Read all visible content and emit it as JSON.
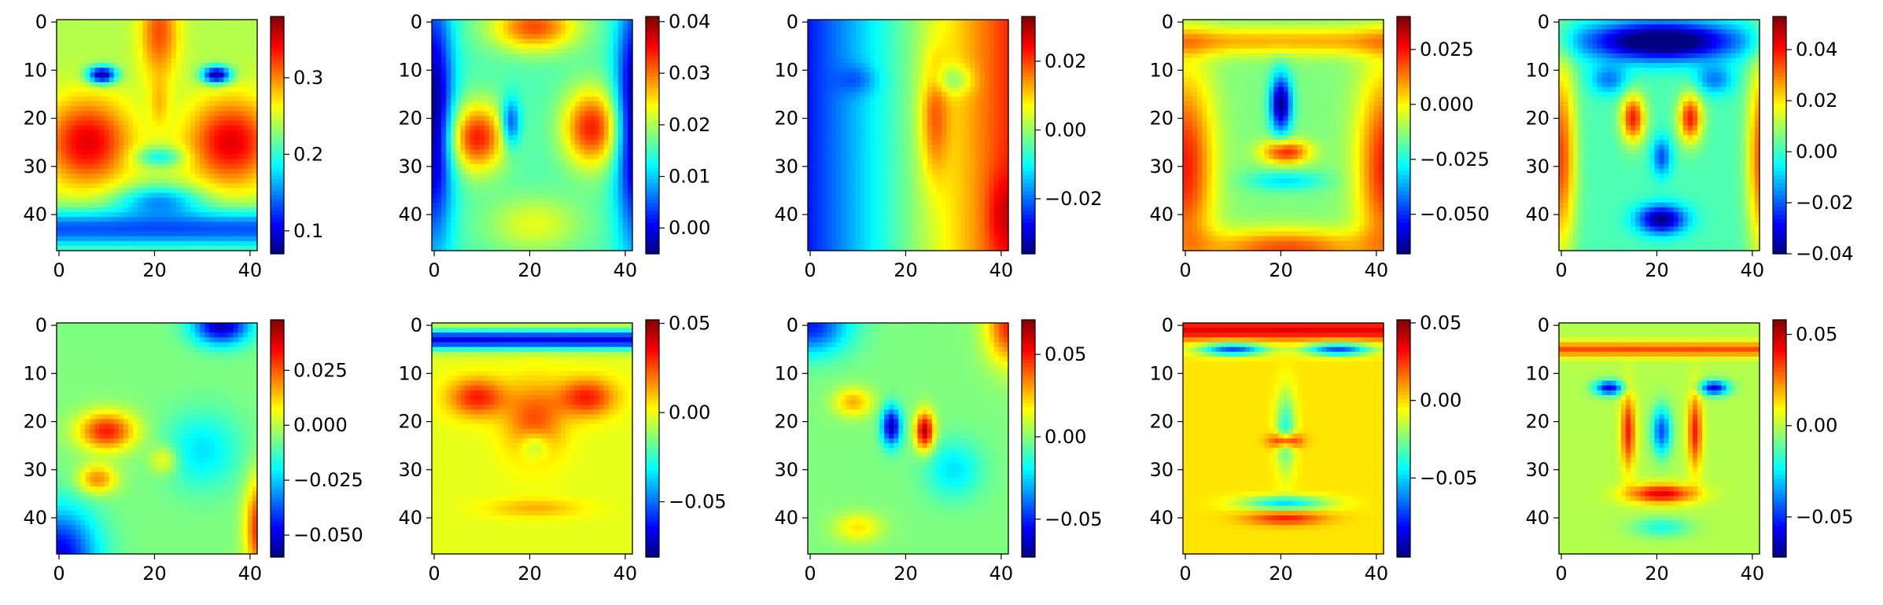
{
  "chart_data": [
    {
      "type": "heatmap",
      "rows": 48,
      "cols": 42,
      "colormap": "jet",
      "xticks": [
        0,
        20,
        40
      ],
      "yticks": [
        0,
        10,
        20,
        30,
        40
      ],
      "colorbar": {
        "vmin": 0.07,
        "vmax": 0.38,
        "ticks": [
          0.1,
          0.2,
          0.3
        ],
        "tick_labels": [
          "0.1",
          "0.2",
          "0.3"
        ]
      }
    },
    {
      "type": "heatmap",
      "rows": 48,
      "cols": 42,
      "colormap": "jet",
      "xticks": [
        0,
        20,
        40
      ],
      "yticks": [
        0,
        10,
        20,
        30,
        40
      ],
      "colorbar": {
        "vmin": -0.005,
        "vmax": 0.041,
        "ticks": [
          0.0,
          0.01,
          0.02,
          0.03,
          0.04
        ],
        "tick_labels": [
          "0.00",
          "0.01",
          "0.02",
          "0.03",
          "0.04"
        ]
      }
    },
    {
      "type": "heatmap",
      "rows": 48,
      "cols": 42,
      "colormap": "jet",
      "xticks": [
        0,
        20,
        40
      ],
      "yticks": [
        0,
        10,
        20,
        30,
        40
      ],
      "colorbar": {
        "vmin": -0.036,
        "vmax": 0.033,
        "ticks": [
          -0.02,
          0.0,
          0.02
        ],
        "tick_labels": [
          "−0.02",
          "0.00",
          "0.02"
        ]
      }
    },
    {
      "type": "heatmap",
      "rows": 48,
      "cols": 42,
      "colormap": "jet",
      "xticks": [
        0,
        20,
        40
      ],
      "yticks": [
        0,
        10,
        20,
        30,
        40
      ],
      "colorbar": {
        "vmin": -0.068,
        "vmax": 0.04,
        "ticks": [
          -0.05,
          -0.025,
          0.0,
          0.025
        ],
        "tick_labels": [
          "−0.050",
          "−0.025",
          "0.000",
          "0.025"
        ]
      }
    },
    {
      "type": "heatmap",
      "rows": 48,
      "cols": 42,
      "colormap": "jet",
      "xticks": [
        0,
        20,
        40
      ],
      "yticks": [
        0,
        10,
        20,
        30,
        40
      ],
      "colorbar": {
        "vmin": -0.04,
        "vmax": 0.053,
        "ticks": [
          -0.04,
          -0.02,
          0.0,
          0.02,
          0.04
        ],
        "tick_labels": [
          "−0.04",
          "−0.02",
          "0.00",
          "0.02",
          "0.04"
        ]
      }
    },
    {
      "type": "heatmap",
      "rows": 48,
      "cols": 42,
      "colormap": "jet",
      "xticks": [
        0,
        20,
        40
      ],
      "yticks": [
        0,
        10,
        20,
        30,
        40
      ],
      "colorbar": {
        "vmin": -0.06,
        "vmax": 0.048,
        "ticks": [
          -0.05,
          -0.025,
          0.0,
          0.025
        ],
        "tick_labels": [
          "−0.050",
          "−0.025",
          "0.000",
          "0.025"
        ]
      }
    },
    {
      "type": "heatmap",
      "rows": 48,
      "cols": 42,
      "colormap": "jet",
      "xticks": [
        0,
        20,
        40
      ],
      "yticks": [
        0,
        10,
        20,
        30,
        40
      ],
      "colorbar": {
        "vmin": -0.081,
        "vmax": 0.052,
        "ticks": [
          -0.05,
          0.0,
          0.05
        ],
        "tick_labels": [
          "−0.05",
          "0.00",
          "0.05"
        ]
      }
    },
    {
      "type": "heatmap",
      "rows": 48,
      "cols": 42,
      "colormap": "jet",
      "xticks": [
        0,
        20,
        40
      ],
      "yticks": [
        0,
        10,
        20,
        30,
        40
      ],
      "colorbar": {
        "vmin": -0.073,
        "vmax": 0.071,
        "ticks": [
          -0.05,
          0.0,
          0.05
        ],
        "tick_labels": [
          "−0.05",
          "0.00",
          "0.05"
        ]
      }
    },
    {
      "type": "heatmap",
      "rows": 48,
      "cols": 42,
      "colormap": "jet",
      "xticks": [
        0,
        20,
        40
      ],
      "yticks": [
        0,
        10,
        20,
        30,
        40
      ],
      "colorbar": {
        "vmin": -0.101,
        "vmax": 0.052,
        "ticks": [
          -0.05,
          0.0,
          0.05
        ],
        "tick_labels": [
          "−0.05",
          "0.00",
          "0.05"
        ]
      }
    },
    {
      "type": "heatmap",
      "rows": 48,
      "cols": 42,
      "colormap": "jet",
      "xticks": [
        0,
        20,
        40
      ],
      "yticks": [
        0,
        10,
        20,
        30,
        40
      ],
      "colorbar": {
        "vmin": -0.072,
        "vmax": 0.058,
        "ticks": [
          -0.05,
          0.0,
          0.05
        ],
        "tick_labels": [
          "−0.05",
          "0.00",
          "0.05"
        ]
      }
    }
  ]
}
